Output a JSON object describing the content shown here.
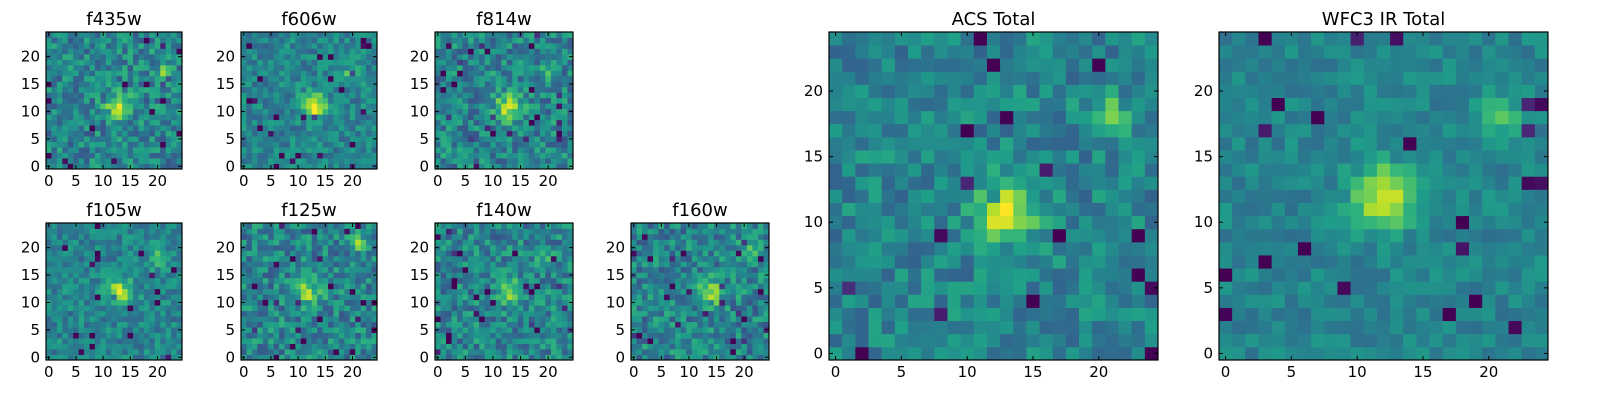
{
  "chart_data": [
    {
      "type": "heatmap",
      "title": "f435w",
      "size": 25,
      "colormap": "viridis",
      "xticks": [
        0,
        5,
        10,
        15,
        20
      ],
      "yticks": [
        0,
        5,
        10,
        15,
        20
      ],
      "xlim": [
        0,
        25
      ],
      "ylim": [
        0,
        25
      ],
      "features": {
        "peak": [
          13,
          11
        ],
        "peak_value": 0.92,
        "secondary_peak": [
          21,
          17
        ],
        "noise": "high"
      }
    },
    {
      "type": "heatmap",
      "title": "f606w",
      "size": 25,
      "colormap": "viridis",
      "xticks": [
        0,
        5,
        10,
        15,
        20
      ],
      "yticks": [
        0,
        5,
        10,
        15,
        20
      ],
      "xlim": [
        0,
        25
      ],
      "ylim": [
        0,
        25
      ],
      "features": {
        "peak": [
          13,
          11
        ],
        "peak_value": 0.95,
        "secondary_peak": [
          20,
          17
        ],
        "noise": "medium"
      }
    },
    {
      "type": "heatmap",
      "title": "f814w",
      "size": 25,
      "colormap": "viridis",
      "xticks": [
        0,
        5,
        10,
        15,
        20
      ],
      "yticks": [
        0,
        5,
        10,
        15,
        20
      ],
      "xlim": [
        0,
        25
      ],
      "ylim": [
        0,
        25
      ],
      "features": {
        "peak": [
          13,
          11
        ],
        "peak_value": 0.9,
        "secondary_peak": [
          20,
          17
        ],
        "noise": "high"
      }
    },
    {
      "type": "heatmap",
      "title": "f105w",
      "size": 25,
      "colormap": "viridis",
      "xticks": [
        0,
        5,
        10,
        15,
        20
      ],
      "yticks": [
        0,
        5,
        10,
        15,
        20
      ],
      "xlim": [
        0,
        25
      ],
      "ylim": [
        0,
        25
      ],
      "features": {
        "peak": [
          13,
          12
        ],
        "peak_value": 0.88,
        "secondary_peak": [
          20,
          18
        ],
        "noise": "medium"
      }
    },
    {
      "type": "heatmap",
      "title": "f125w",
      "size": 25,
      "colormap": "viridis",
      "xticks": [
        0,
        5,
        10,
        15,
        20
      ],
      "yticks": [
        0,
        5,
        10,
        15,
        20
      ],
      "xlim": [
        0,
        25
      ],
      "ylim": [
        0,
        25
      ],
      "features": {
        "peak": [
          12,
          12
        ],
        "peak_value": 0.8,
        "secondary_peak": [
          21,
          21
        ],
        "noise": "high"
      }
    },
    {
      "type": "heatmap",
      "title": "f140w",
      "size": 25,
      "colormap": "viridis",
      "xticks": [
        0,
        5,
        10,
        15,
        20
      ],
      "yticks": [
        0,
        5,
        10,
        15,
        20
      ],
      "xlim": [
        0,
        25
      ],
      "ylim": [
        0,
        25
      ],
      "features": {
        "peak": [
          13,
          12
        ],
        "peak_value": 0.9,
        "secondary_peak": [
          20,
          18
        ],
        "noise": "high"
      }
    },
    {
      "type": "heatmap",
      "title": "f160w",
      "size": 25,
      "colormap": "viridis",
      "xticks": [
        0,
        5,
        10,
        15,
        20
      ],
      "yticks": [
        0,
        5,
        10,
        15,
        20
      ],
      "xlim": [
        0,
        25
      ],
      "ylim": [
        0,
        25
      ],
      "features": {
        "peak": [
          14,
          12
        ],
        "peak_value": 0.85,
        "secondary_peak": [
          21,
          20
        ],
        "noise": "high"
      }
    },
    {
      "type": "heatmap",
      "title": "ACS Total",
      "size": 25,
      "colormap": "viridis",
      "xticks": [
        0,
        5,
        10,
        15,
        20
      ],
      "yticks": [
        0,
        5,
        10,
        15,
        20
      ],
      "xlim": [
        0,
        25
      ],
      "ylim": [
        0,
        25
      ],
      "features": {
        "peak": [
          13,
          11
        ],
        "peak_value": 0.98,
        "secondary_peak": [
          21,
          18
        ],
        "noise": "medium"
      }
    },
    {
      "type": "heatmap",
      "title": "WFC3 IR Total",
      "size": 25,
      "colormap": "viridis",
      "xticks": [
        0,
        5,
        10,
        15,
        20
      ],
      "yticks": [
        0,
        5,
        10,
        15,
        20
      ],
      "xlim": [
        0,
        25
      ],
      "ylim": [
        0,
        25
      ],
      "features": {
        "peak": [
          12,
          12
        ],
        "peak_value": 0.95,
        "secondary_peak": [
          21,
          18
        ],
        "noise": "low"
      }
    }
  ]
}
